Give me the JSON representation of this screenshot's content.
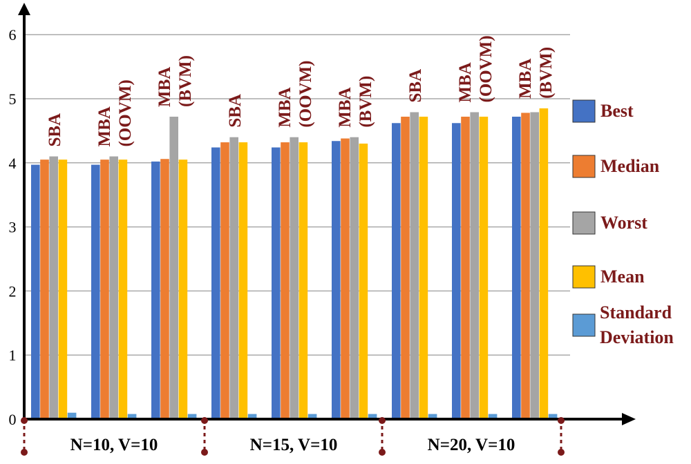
{
  "chart_data": {
    "type": "bar",
    "ylim": [
      0,
      6
    ],
    "yticks": [
      "0",
      "1",
      "2",
      "3",
      "4",
      "5",
      "6"
    ],
    "grid": true,
    "legend_placement": "right",
    "groups": [
      "N=10, V=10",
      "N=15, V=10",
      "N=20, V=10"
    ],
    "categories": [
      "SBA",
      "MBA (OOVM)",
      "MBA (BVM)",
      "SBA",
      "MBA (OOVM)",
      "MBA (BVM)",
      "SBA",
      "MBA (OOVM)",
      "MBA (BVM)"
    ],
    "category_lines": [
      [
        "SBA"
      ],
      [
        "MBA",
        "(OOVM)"
      ],
      [
        "MBA",
        "(BVM)"
      ],
      [
        "SBA"
      ],
      [
        "MBA",
        "(OOVM)"
      ],
      [
        "MBA",
        "(BVM)"
      ],
      [
        "SBA"
      ],
      [
        "MBA",
        "(OOVM)"
      ],
      [
        "MBA",
        "(BVM)"
      ]
    ],
    "series": [
      {
        "name": "Best",
        "color": "#4472C4",
        "values": [
          3.97,
          3.97,
          4.02,
          4.24,
          4.24,
          4.34,
          4.62,
          4.62,
          4.72
        ]
      },
      {
        "name": "Median",
        "color": "#ED7D31",
        "values": [
          4.05,
          4.05,
          4.06,
          4.32,
          4.32,
          4.38,
          4.72,
          4.72,
          4.78
        ]
      },
      {
        "name": "Worst",
        "color": "#A5A5A5",
        "values": [
          4.1,
          4.1,
          4.72,
          4.4,
          4.4,
          4.4,
          4.79,
          4.79,
          4.79
        ]
      },
      {
        "name": "Mean",
        "color": "#FFC000",
        "values": [
          4.05,
          4.05,
          4.05,
          4.32,
          4.32,
          4.3,
          4.72,
          4.72,
          4.85
        ]
      },
      {
        "name": "Standard Deviation",
        "color": "#5B9BD5",
        "values": [
          0.1,
          0.08,
          0.08,
          0.08,
          0.08,
          0.08,
          0.08,
          0.08,
          0.08
        ]
      }
    ],
    "label_color": "#7B1A1A"
  }
}
